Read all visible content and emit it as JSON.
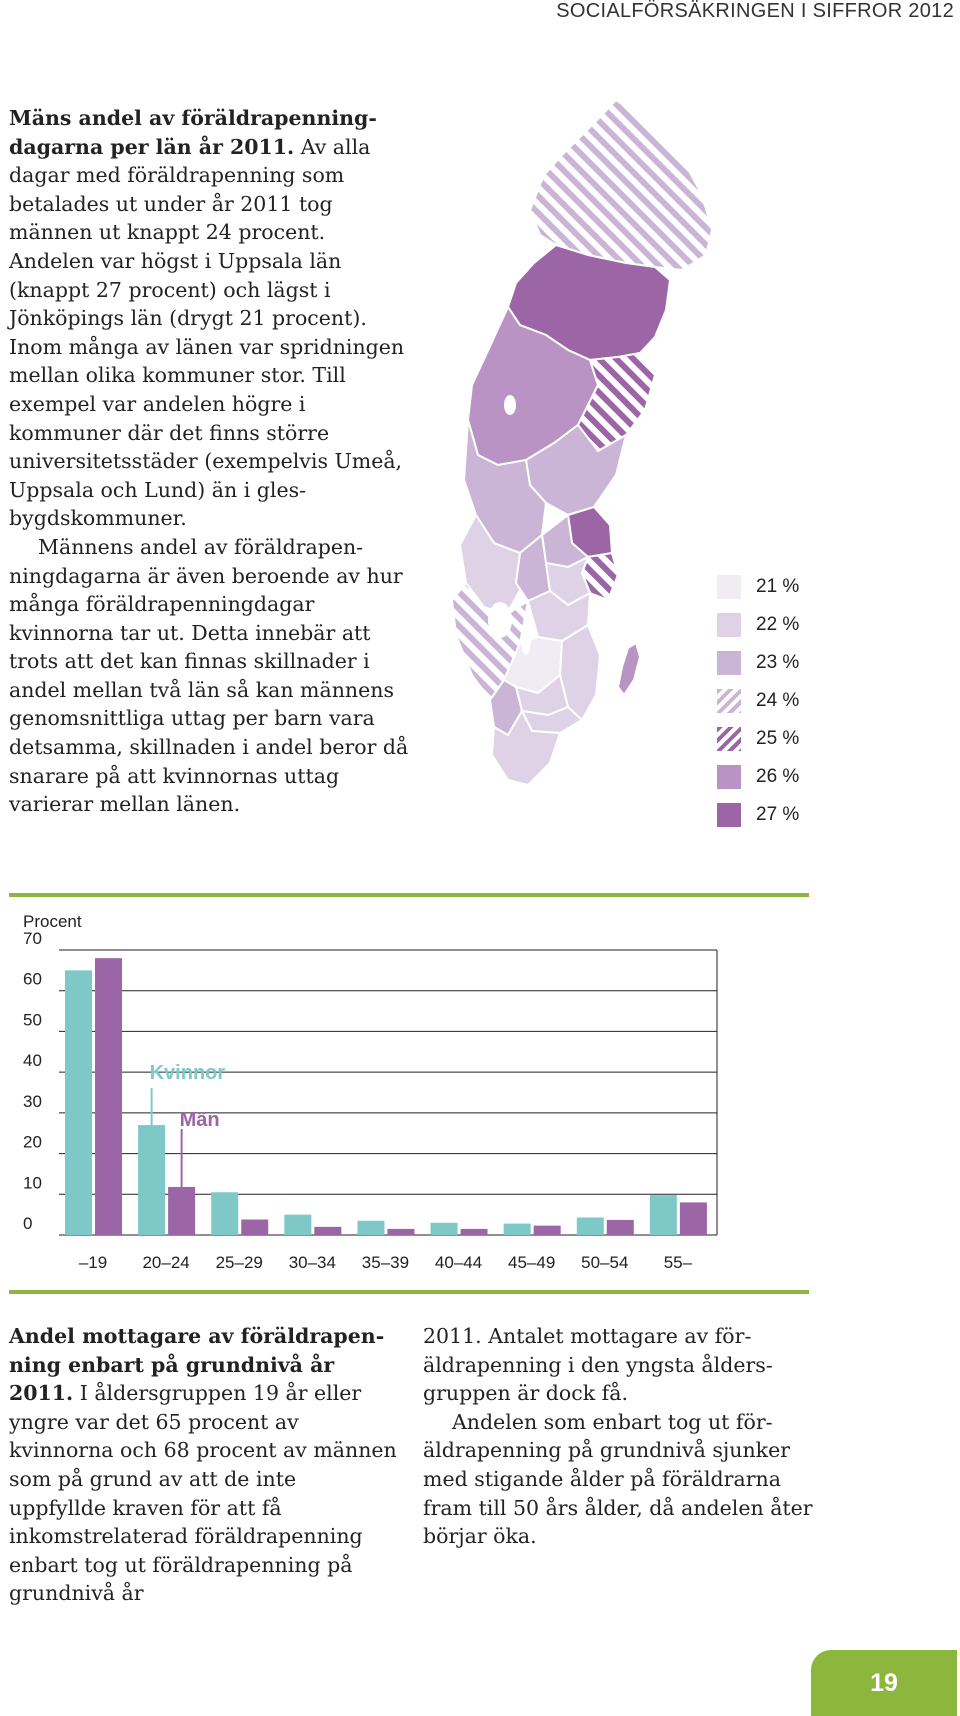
{
  "header": {
    "running_title": "SOCIALFÖRSÄKRINGEN I SIFFROR 2012"
  },
  "map_section": {
    "text_bold": "Mäns andel av föräldrapenning­dagarna per län år 2011.",
    "text_rest": " Av alla dagar med föräldrapenning som betalades ut under år 2011 tog männen ut knappt 24 procent. Andelen var högst i Uppsala län (knappt 27 procent) och lägst i Jönköpings län (drygt 21 procent). Inom många av länen var sprid­ningen mellan olika kommuner stor. Till exempel var andelen högre i kommuner där det finns större universitetsstäder (exempelvis Umeå, Uppsala och Lund) än i gles­bygdskommuner.",
    "paragraph_2": "Männens andel av föräldrapen­ningdagarna är även beroende av hur många föräldrapenningdagar kvinnorna tar ut. Detta innebär att trots att det kan finnas skillnader i andel mellan två län så kan män­nens genomsnittliga uttag per barn vara detsamma, skillnaden i andel beror då snarare på att kvinnornas uttag varierar mellan länen."
  },
  "legend": [
    {
      "label": "21 %",
      "color": "#f1ebf3",
      "pattern": "solid"
    },
    {
      "label": "22 %",
      "color": "#e0d2e6",
      "pattern": "solid"
    },
    {
      "label": "23 %",
      "color": "#cbb5d6",
      "pattern": "solid"
    },
    {
      "label": "24 %",
      "color": "#cbb5d6",
      "pattern": "hatch-light"
    },
    {
      "label": "25 %",
      "color": "#9c65a5",
      "pattern": "hatch-dark"
    },
    {
      "label": "26 %",
      "color": "#b893c3",
      "pattern": "solid"
    },
    {
      "label": "27 %",
      "color": "#9c65a5",
      "pattern": "solid"
    }
  ],
  "chart_data": {
    "type": "bar",
    "ylabel": "Procent",
    "ylim": [
      0,
      70
    ],
    "yticks": [
      "0",
      "10",
      "20",
      "30",
      "40",
      "50",
      "60",
      "70"
    ],
    "categories": [
      "–19",
      "20–24",
      "25–29",
      "30–34",
      "35–39",
      "40–44",
      "45–49",
      "50–54",
      "55–"
    ],
    "series": [
      {
        "name": "Kvinnor",
        "color": "#7ec9c7",
        "values": [
          65,
          27,
          10.5,
          5,
          3.5,
          3,
          2.8,
          4.3,
          9.8
        ]
      },
      {
        "name": "Män",
        "color": "#9c65a5",
        "values": [
          68,
          11.8,
          3.8,
          2,
          1.5,
          1.5,
          2.3,
          3.7,
          8
        ]
      }
    ]
  },
  "chart_caption": {
    "bold": "Andel mottagare av föräldrapen­ning enbart på grundnivå år 2011.",
    "left_rest": " I åldersgruppen 19 år eller yngre var det 65 procent av kvinnorna och 68 procent av männen som på grund av att de inte uppfyllde kraven för att få inkomstrelate­rad föräldrapenning enbart tog ut föräldrapenning på grundnivå år",
    "right_p1": "2011. Antalet mottagare av för­äldrapenning i den yngsta ålders­gruppen är dock få.",
    "right_p2": "Andelen som enbart tog ut för­äldrapenning på grundnivå sjunker med stigande ålder på föräldrarna fram till 50 års ålder, då andelen åter börjar öka."
  },
  "page_number": "19"
}
